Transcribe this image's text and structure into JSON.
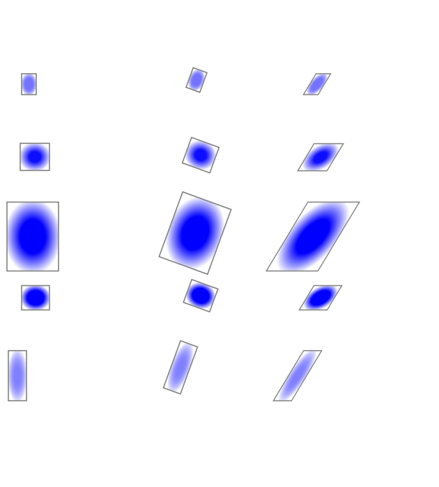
{
  "colors": {
    "background": "#ffffff",
    "gradient_center": "#0000ff",
    "gradient_edge": "#ffffff",
    "stroke": "#808080"
  },
  "gradients": [
    {
      "center_opacity": 0.55
    },
    {
      "center_opacity": 0.95
    },
    {
      "center_opacity": 1.0
    },
    {
      "center_opacity": 1.0
    },
    {
      "center_opacity": 0.5
    }
  ]
}
